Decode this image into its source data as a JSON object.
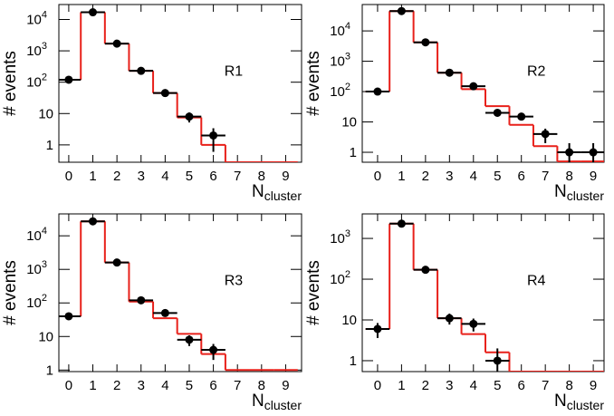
{
  "chart_data": [
    {
      "type": "histogram",
      "annotation": "R1",
      "y_label": "# events",
      "x_label": "N",
      "x_label_subscript": "cluster",
      "x": [
        0,
        1,
        2,
        3,
        4,
        5,
        6,
        7,
        8,
        9
      ],
      "xlim": [
        -0.41,
        9.66
      ],
      "ylim": [
        0.28,
        30000
      ],
      "log_y": true,
      "xticks": [
        0,
        1,
        2,
        3,
        4,
        5,
        6,
        7,
        8,
        9
      ],
      "yticks": [
        1,
        10,
        {
          "value": 100,
          "label": "10",
          "label_sup": "2"
        },
        {
          "value": 1000,
          "label": "10",
          "label_sup": "3"
        },
        {
          "value": 10000,
          "label": "10",
          "label_sup": "4"
        }
      ],
      "points": {
        "color": "#000000",
        "values": [
          120,
          17000,
          1700,
          230,
          45,
          8,
          2,
          null,
          null,
          null
        ],
        "errors": [
          11,
          130,
          41,
          15,
          6.7,
          2.8,
          1.4,
          null,
          null,
          null
        ]
      },
      "model": {
        "color": "#e8201a",
        "values": [
          120,
          17000,
          1700,
          230,
          45,
          7.5,
          1,
          0,
          0,
          0
        ]
      }
    },
    {
      "type": "histogram",
      "annotation": "R2",
      "y_label": "# events",
      "x_label": "N",
      "x_label_subscript": "cluster",
      "x": [
        0,
        1,
        2,
        3,
        4,
        5,
        6,
        7,
        8,
        9
      ],
      "xlim": [
        -0.64,
        9.45
      ],
      "ylim": [
        0.47,
        74000
      ],
      "log_y": true,
      "xticks": [
        0,
        1,
        2,
        3,
        4,
        5,
        6,
        7,
        8,
        9
      ],
      "yticks": [
        1,
        10,
        {
          "value": 100,
          "label": "10",
          "label_sup": "2"
        },
        {
          "value": 1000,
          "label": "10",
          "label_sup": "3"
        },
        {
          "value": 10000,
          "label": "10",
          "label_sup": "4"
        }
      ],
      "points": {
        "color": "#000000",
        "values": [
          100,
          45000,
          4200,
          420,
          150,
          20,
          15,
          4,
          1,
          1
        ],
        "errors": [
          10,
          212,
          65,
          20,
          12,
          4.5,
          3.9,
          2,
          1,
          1
        ]
      },
      "model": {
        "color": "#e8201a",
        "values": [
          100,
          45000,
          4200,
          420,
          120,
          33,
          8,
          1.6,
          0.5,
          0.5
        ]
      }
    },
    {
      "type": "histogram",
      "annotation": "R3",
      "y_label": "# events",
      "x_label": "N",
      "x_label_subscript": "cluster",
      "x": [
        0,
        1,
        2,
        3,
        4,
        5,
        6,
        7,
        8,
        9
      ],
      "xlim": [
        -0.41,
        9.66
      ],
      "ylim": [
        0.9,
        45000
      ],
      "log_y": true,
      "xticks": [
        0,
        1,
        2,
        3,
        4,
        5,
        6,
        7,
        8,
        9
      ],
      "yticks": [
        1,
        10,
        {
          "value": 100,
          "label": "10",
          "label_sup": "2"
        },
        {
          "value": 1000,
          "label": "10",
          "label_sup": "3"
        },
        {
          "value": 10000,
          "label": "10",
          "label_sup": "4"
        }
      ],
      "points": {
        "color": "#000000",
        "values": [
          40,
          27000,
          1600,
          120,
          50,
          8,
          4,
          null,
          null,
          null
        ],
        "errors": [
          6.3,
          164,
          40,
          11,
          7,
          2.8,
          2,
          null,
          null,
          null
        ]
      },
      "model": {
        "color": "#e8201a",
        "values": [
          40,
          27000,
          1600,
          110,
          35,
          12,
          3,
          1,
          1,
          1
        ]
      }
    },
    {
      "type": "histogram",
      "annotation": "R4",
      "y_label": "# events",
      "x_label": "N",
      "x_label_subscript": "cluster",
      "x": [
        0,
        1,
        2,
        3,
        4,
        5,
        6,
        7,
        8,
        9
      ],
      "xlim": [
        -0.64,
        9.45
      ],
      "ylim": [
        0.54,
        4000
      ],
      "log_y": true,
      "xticks": [
        0,
        1,
        2,
        3,
        4,
        5,
        6,
        7,
        8,
        9
      ],
      "yticks": [
        1,
        10,
        {
          "value": 100,
          "label": "10",
          "label_sup": "2"
        },
        {
          "value": 1000,
          "label": "10",
          "label_sup": "3"
        }
      ],
      "points": {
        "color": "#000000",
        "values": [
          6,
          2300,
          170,
          11,
          8,
          1,
          null,
          null,
          null,
          null
        ],
        "errors": [
          2.4,
          48,
          13,
          3.3,
          2.8,
          1,
          null,
          null,
          null,
          null
        ]
      },
      "model": {
        "color": "#e8201a",
        "values": [
          6,
          2300,
          170,
          11,
          4.5,
          1.6,
          0.5,
          0.5,
          0.5,
          0.5
        ]
      }
    }
  ]
}
